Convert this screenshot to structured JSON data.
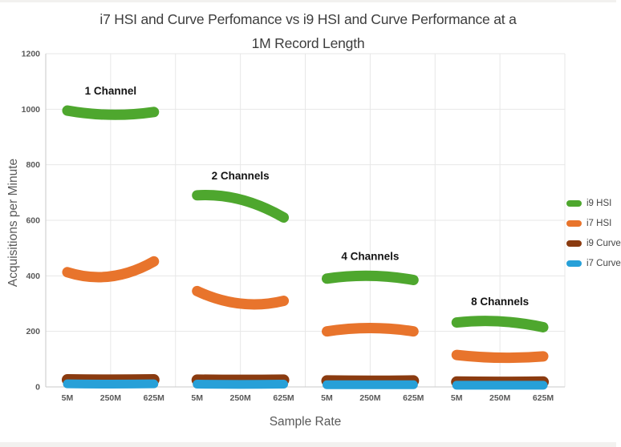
{
  "chart_data": {
    "type": "line",
    "title": "i7 HSI and Curve Perfomance vs i9 HSI and Curve Performance at a 1M Record Length",
    "title_lines": [
      "i7 HSI and Curve Perfomance vs i9 HSI and Curve Performance at a",
      "1M Record Length"
    ],
    "xlabel": "Sample Rate",
    "ylabel": "Acquisitions per Minute",
    "ylim": [
      0,
      1200
    ],
    "yticks": [
      0,
      200,
      400,
      600,
      800,
      1000,
      1200
    ],
    "grid": true,
    "legend_position": "right",
    "groups": [
      {
        "label": "1 Channel",
        "x_ticks": [
          "5M",
          "250M",
          "625M"
        ]
      },
      {
        "label": "2 Channels",
        "x_ticks": [
          "5M",
          "250M",
          "625M"
        ]
      },
      {
        "label": "4 Channels",
        "x_ticks": [
          "5M",
          "250M",
          "625M"
        ]
      },
      {
        "label": "8 Channels",
        "x_ticks": [
          "5M",
          "250M",
          "625M"
        ]
      }
    ],
    "series": [
      {
        "name": "i9 HSI",
        "color": "#4ea72e",
        "values_by_group": [
          [
            995,
            980,
            990
          ],
          [
            690,
            675,
            610
          ],
          [
            390,
            400,
            385
          ],
          [
            232,
            236,
            215
          ]
        ]
      },
      {
        "name": "i7 HSI",
        "color": "#e8742c",
        "values_by_group": [
          [
            413,
            398,
            452
          ],
          [
            345,
            300,
            310
          ],
          [
            200,
            212,
            200
          ],
          [
            115,
            105,
            110
          ]
        ]
      },
      {
        "name": "i9 Curve",
        "color": "#8a3b10",
        "values_by_group": [
          [
            26,
            25,
            26
          ],
          [
            25,
            24,
            25
          ],
          [
            22,
            21,
            22
          ],
          [
            18,
            17,
            18
          ]
        ]
      },
      {
        "name": "i7 Curve",
        "color": "#27a0d8",
        "values_by_group": [
          [
            11,
            10,
            11
          ],
          [
            10,
            9,
            10
          ],
          [
            8,
            8,
            8
          ],
          [
            6,
            6,
            6
          ]
        ]
      }
    ],
    "colors": {
      "grid_line": "#e7e7e7",
      "axis_line": "#c9c9c9",
      "tick_text": "#595959",
      "group_label_text": "#141414",
      "title_text": "#3d3d3d"
    }
  }
}
